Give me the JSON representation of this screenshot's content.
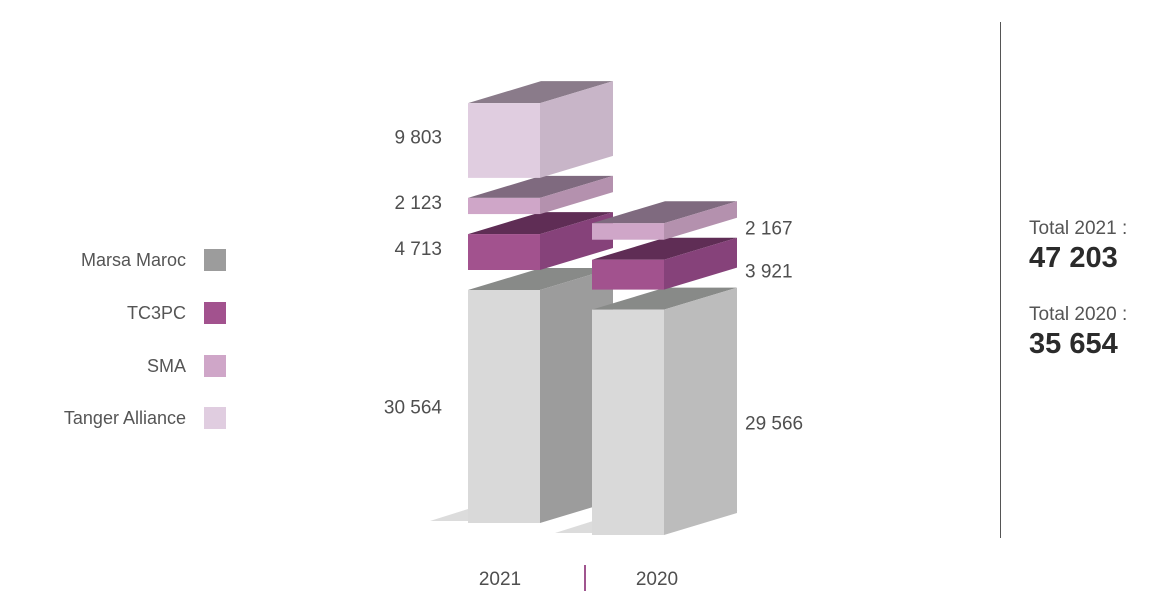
{
  "chart_data": {
    "type": "bar",
    "stacked": true,
    "style": "3d",
    "categories": [
      "2021",
      "2020"
    ],
    "series": [
      {
        "name": "Marsa Maroc",
        "values": [
          30564,
          29566
        ],
        "labels": [
          "30 564",
          "29 566"
        ],
        "color": "#9c9c9c"
      },
      {
        "name": "TC3PC",
        "values": [
          4713,
          3921
        ],
        "labels": [
          "4 713",
          "3 921"
        ],
        "color": "#a2528e"
      },
      {
        "name": "SMA",
        "values": [
          2123,
          2167
        ],
        "labels": [
          "2 123",
          "2 167"
        ],
        "color": "#cfa6c8"
      },
      {
        "name": "Tanger Alliance",
        "values": [
          9803,
          null
        ],
        "labels": [
          "9 803",
          ""
        ],
        "color": "#e0cde0"
      }
    ],
    "legend_position": "left",
    "grid": false
  },
  "totals": [
    {
      "label": "Total 2021 :",
      "value": "47 203"
    },
    {
      "label": "Total 2020 :",
      "value": "35 654"
    }
  ]
}
